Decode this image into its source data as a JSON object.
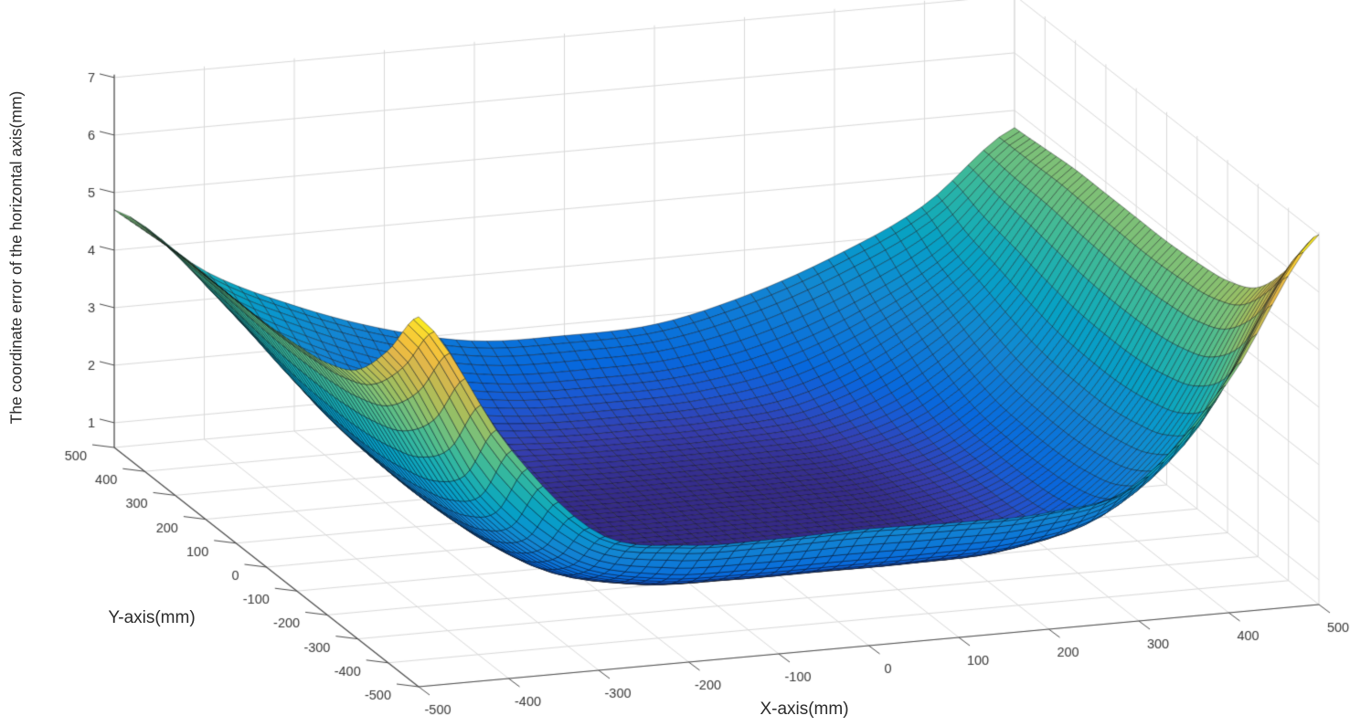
{
  "figure": {
    "background": "#ffffff"
  },
  "chart_data": {
    "type": "surface",
    "title": "",
    "xlabel": "X-axis(mm)",
    "ylabel": "Y-axis(mm)",
    "zlabel": "The coordinate error of the horizontal axis(mm)",
    "x_ticks": [
      -500,
      -400,
      -300,
      -200,
      -100,
      0,
      100,
      200,
      300,
      400,
      500
    ],
    "y_ticks": [
      -500,
      -400,
      -300,
      -200,
      -100,
      0,
      100,
      200,
      300,
      400,
      500
    ],
    "z_ticks": [
      1,
      2,
      3,
      4,
      5,
      6,
      7
    ],
    "xlim": [
      -500,
      500
    ],
    "ylim": [
      -500,
      500
    ],
    "zlim_axis": [
      0.57,
      7.05
    ],
    "color_axis": [
      0.8,
      7.0
    ],
    "grid": true,
    "legend": "none",
    "colormap": "parula",
    "colormap_stops": [
      [
        0.0,
        "#352a87"
      ],
      [
        0.03,
        "#353eaf"
      ],
      [
        0.07,
        "#1e56d0"
      ],
      [
        0.12,
        "#0768dd"
      ],
      [
        0.18,
        "#0c77d8"
      ],
      [
        0.25,
        "#1385d2"
      ],
      [
        0.32,
        "#0a94cf"
      ],
      [
        0.38,
        "#07a1c4"
      ],
      [
        0.44,
        "#18adb4"
      ],
      [
        0.5,
        "#33b7a0"
      ],
      [
        0.56,
        "#55bd8a"
      ],
      [
        0.62,
        "#7ac079"
      ],
      [
        0.68,
        "#9dbf61"
      ],
      [
        0.75,
        "#c3ba50"
      ],
      [
        0.82,
        "#e0b64b"
      ],
      [
        0.88,
        "#f3c03b"
      ],
      [
        0.94,
        "#fad631"
      ],
      [
        1.0,
        "#f9fb15"
      ]
    ],
    "surface_grid": {
      "x": [
        -500,
        -400,
        -300,
        -200,
        -100,
        0,
        100,
        200,
        300,
        400,
        500
      ],
      "y": [
        -500,
        -400,
        -300,
        -200,
        -100,
        0,
        100,
        200,
        300,
        400,
        500
      ],
      "z": [
        [
          7.0,
          4.6,
          2.95,
          2.6,
          2.57,
          2.6,
          2.57,
          2.6,
          2.95,
          4.6,
          7.0
        ],
        [
          6.0,
          3.4,
          2.05,
          1.62,
          1.55,
          1.55,
          1.55,
          1.62,
          2.05,
          3.4,
          6.0
        ],
        [
          5.25,
          2.9,
          1.55,
          1.1,
          1.03,
          1.03,
          1.03,
          1.1,
          1.55,
          2.9,
          5.25
        ],
        [
          4.95,
          2.7,
          1.35,
          0.9,
          0.82,
          0.82,
          0.82,
          0.9,
          1.35,
          2.7,
          4.95
        ],
        [
          4.85,
          2.6,
          1.3,
          0.87,
          0.8,
          0.8,
          0.8,
          0.87,
          1.3,
          2.6,
          4.85
        ],
        [
          4.8,
          2.6,
          1.3,
          0.87,
          0.8,
          0.8,
          0.8,
          0.87,
          1.3,
          2.6,
          4.8
        ],
        [
          4.8,
          2.65,
          1.35,
          0.9,
          0.82,
          0.82,
          0.82,
          0.9,
          1.35,
          2.65,
          4.8
        ],
        [
          4.8,
          2.8,
          1.55,
          1.0,
          0.9,
          0.88,
          0.9,
          1.0,
          1.55,
          2.8,
          4.8
        ],
        [
          4.8,
          3.0,
          1.9,
          1.25,
          1.05,
          1.02,
          1.05,
          1.25,
          1.9,
          3.0,
          4.8
        ],
        [
          4.75,
          3.2,
          2.3,
          1.7,
          1.4,
          1.35,
          1.4,
          1.7,
          2.3,
          3.2,
          4.75
        ],
        [
          4.7,
          3.5,
          2.75,
          2.2,
          1.85,
          1.8,
          1.85,
          2.2,
          2.75,
          3.5,
          4.7
        ]
      ]
    },
    "surface_value_range": [
      0.8,
      7.0
    ],
    "styles": {
      "background": "#ffffff",
      "grid_color": "#d9d9d9",
      "axis_color": "#4d4d4d",
      "tick_text_color": "#3a3a3a",
      "mesh_edge_color": "rgba(8,10,16,0.72)"
    }
  }
}
